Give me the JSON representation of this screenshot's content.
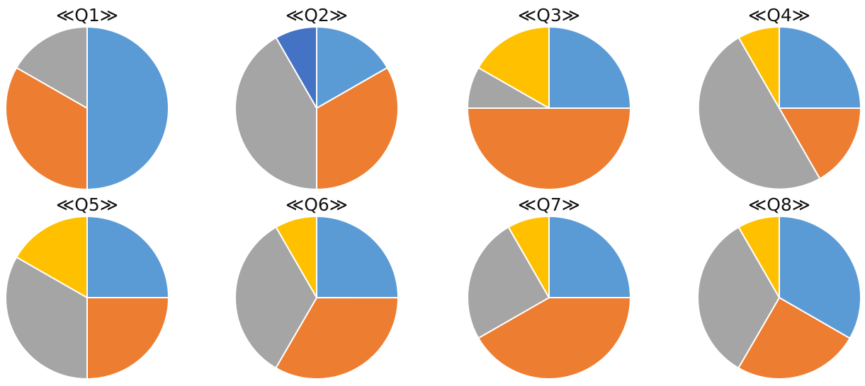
{
  "chart_data": [
    {
      "type": "pie",
      "title": "≪Q1≫",
      "slices": [
        {
          "value": 50,
          "color": "#5B9BD5"
        },
        {
          "value": 33.3,
          "color": "#ED7D31"
        },
        {
          "value": 16.7,
          "color": "#A5A5A5"
        }
      ]
    },
    {
      "type": "pie",
      "title": "≪Q2≫",
      "slices": [
        {
          "value": 16.7,
          "color": "#5B9BD5"
        },
        {
          "value": 33.3,
          "color": "#ED7D31"
        },
        {
          "value": 41.7,
          "color": "#A5A5A5"
        },
        {
          "value": 8.3,
          "color": "#4472C4"
        }
      ]
    },
    {
      "type": "pie",
      "title": "≪Q3≫",
      "slices": [
        {
          "value": 25,
          "color": "#5B9BD5"
        },
        {
          "value": 50,
          "color": "#ED7D31"
        },
        {
          "value": 8.3,
          "color": "#A5A5A5"
        },
        {
          "value": 16.7,
          "color": "#FFC000"
        }
      ]
    },
    {
      "type": "pie",
      "title": "≪Q4≫",
      "slices": [
        {
          "value": 25,
          "color": "#5B9BD5"
        },
        {
          "value": 16.7,
          "color": "#ED7D31"
        },
        {
          "value": 50,
          "color": "#A5A5A5"
        },
        {
          "value": 8.3,
          "color": "#FFC000"
        }
      ]
    },
    {
      "type": "pie",
      "title": "≪Q5≫",
      "slices": [
        {
          "value": 25,
          "color": "#5B9BD5"
        },
        {
          "value": 25,
          "color": "#ED7D31"
        },
        {
          "value": 33.3,
          "color": "#A5A5A5"
        },
        {
          "value": 16.7,
          "color": "#FFC000"
        }
      ]
    },
    {
      "type": "pie",
      "title": "≪Q6≫",
      "slices": [
        {
          "value": 25,
          "color": "#5B9BD5"
        },
        {
          "value": 33.3,
          "color": "#ED7D31"
        },
        {
          "value": 33.3,
          "color": "#A5A5A5"
        },
        {
          "value": 8.3,
          "color": "#FFC000"
        }
      ]
    },
    {
      "type": "pie",
      "title": "≪Q7≫",
      "slices": [
        {
          "value": 25,
          "color": "#5B9BD5"
        },
        {
          "value": 41.7,
          "color": "#ED7D31"
        },
        {
          "value": 25,
          "color": "#A5A5A5"
        },
        {
          "value": 8.3,
          "color": "#FFC000"
        }
      ]
    },
    {
      "type": "pie",
      "title": "≪Q8≫",
      "slices": [
        {
          "value": 33.3,
          "color": "#5B9BD5"
        },
        {
          "value": 25,
          "color": "#ED7D31"
        },
        {
          "value": 33.3,
          "color": "#A5A5A5"
        },
        {
          "value": 8.3,
          "color": "#FFC000"
        }
      ]
    }
  ]
}
